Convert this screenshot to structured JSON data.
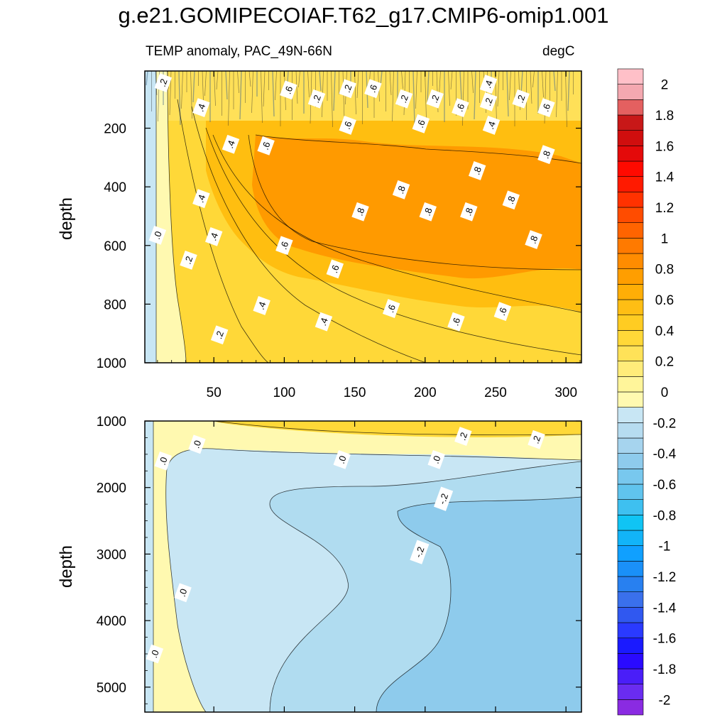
{
  "title": "g.e21.GOMIPECOIAF.T62_g17.CMIP6-omip1.001",
  "chart_data": {
    "type": "heatmap",
    "title": "g.e21.GOMIPECOIAF.T62_g17.CMIP6-omip1.001",
    "subtitle_left": "TEMP anomaly, PAC_49N-66N",
    "subtitle_right": "degC",
    "panels": [
      {
        "name": "upper",
        "ylabel": "depth",
        "xlim": [
          1,
          311
        ],
        "ylim": [
          1000,
          5
        ],
        "x_ticks": [
          50,
          100,
          150,
          200,
          250,
          300
        ],
        "x_tick_labels": [
          "50",
          "100",
          "150",
          "200",
          "250",
          "300"
        ],
        "y_ticks": [
          200,
          400,
          600,
          800,
          1000
        ],
        "y_tick_labels": [
          "200",
          "400",
          "600",
          "800",
          "1000"
        ],
        "contour_labels": [
          {
            "text": ".2",
            "x": 14,
            "y": 45
          },
          {
            "text": ".4",
            "x": 41,
            "y": 130
          },
          {
            "text": ".6",
            "x": 103,
            "y": 70
          },
          {
            "text": ".2",
            "x": 123,
            "y": 100
          },
          {
            "text": ".2",
            "x": 145,
            "y": 65
          },
          {
            "text": ".6",
            "x": 163,
            "y": 65
          },
          {
            "text": ".2",
            "x": 185,
            "y": 100
          },
          {
            "text": ".2",
            "x": 207,
            "y": 100
          },
          {
            "text": ".6",
            "x": 225,
            "y": 130
          },
          {
            "text": ".4",
            "x": 245,
            "y": 50
          },
          {
            "text": ".2",
            "x": 245,
            "y": 110
          },
          {
            "text": ".2",
            "x": 268,
            "y": 100
          },
          {
            "text": ".6",
            "x": 286,
            "y": 130
          },
          {
            "text": ".6",
            "x": 145,
            "y": 190
          },
          {
            "text": ".6",
            "x": 197,
            "y": 185
          },
          {
            "text": ".4",
            "x": 247,
            "y": 190
          },
          {
            "text": ".4",
            "x": 62,
            "y": 255
          },
          {
            "text": ".6",
            "x": 87,
            "y": 260
          },
          {
            "text": ".8",
            "x": 286,
            "y": 290
          },
          {
            "text": ".8",
            "x": 237,
            "y": 345
          },
          {
            "text": ".8",
            "x": 183,
            "y": 410
          },
          {
            "text": ".4",
            "x": 41,
            "y": 440
          },
          {
            "text": ".8",
            "x": 261,
            "y": 445
          },
          {
            "text": ".8",
            "x": 154,
            "y": 485
          },
          {
            "text": ".8",
            "x": 202,
            "y": 485
          },
          {
            "text": ".8",
            "x": 231,
            "y": 485
          },
          {
            "text": ".0",
            "x": 10,
            "y": 565
          },
          {
            "text": ".4",
            "x": 50,
            "y": 570
          },
          {
            "text": ".8",
            "x": 277,
            "y": 580
          },
          {
            "text": ".6",
            "x": 100,
            "y": 600
          },
          {
            "text": ".2",
            "x": 32,
            "y": 650
          },
          {
            "text": ".6",
            "x": 136,
            "y": 680
          },
          {
            "text": ".4",
            "x": 84,
            "y": 805
          },
          {
            "text": ".6",
            "x": 176,
            "y": 815
          },
          {
            "text": ".6",
            "x": 255,
            "y": 825
          },
          {
            "text": ".4",
            "x": 128,
            "y": 860
          },
          {
            "text": ".6",
            "x": 222,
            "y": 860
          },
          {
            "text": ".2",
            "x": 54,
            "y": 905
          }
        ]
      },
      {
        "name": "lower",
        "ylabel": "depth",
        "xlim": [
          1,
          311
        ],
        "ylim": [
          5375,
          1000
        ],
        "y_ticks": [
          1000,
          2000,
          3000,
          4000,
          5000
        ],
        "y_tick_labels": [
          "1000",
          "2000",
          "3000",
          "4000",
          "5000"
        ],
        "contour_labels": [
          {
            "text": ".0",
            "x": 38,
            "y": 1350
          },
          {
            "text": ".0",
            "x": 14,
            "y": 1600
          },
          {
            "text": ".0",
            "x": 141,
            "y": 1580
          },
          {
            "text": ".0",
            "x": 208,
            "y": 1580
          },
          {
            "text": ".2",
            "x": 227,
            "y": 1230
          },
          {
            "text": ".2",
            "x": 279,
            "y": 1280
          },
          {
            "text": "-.2",
            "x": 213,
            "y": 2170
          },
          {
            "text": "-.2",
            "x": 196,
            "y": 2970
          },
          {
            "text": ".0",
            "x": 28,
            "y": 3580
          },
          {
            "text": ".0",
            "x": 8,
            "y": 4500
          }
        ]
      }
    ],
    "colorbar": {
      "levels": [
        -2,
        -1.9,
        -1.8,
        -1.7,
        -1.6,
        -1.5,
        -1.4,
        -1.3,
        -1.2,
        -1.1,
        -1,
        -0.9,
        -0.8,
        -0.7,
        -0.6,
        -0.5,
        -0.4,
        -0.3,
        -0.2,
        -0.1,
        0,
        0.1,
        0.2,
        0.3,
        0.4,
        0.5,
        0.6,
        0.7,
        0.8,
        0.9,
        1,
        1.1,
        1.2,
        1.3,
        1.4,
        1.5,
        1.6,
        1.7,
        1.8,
        1.9,
        2
      ],
      "labels": [
        "-2",
        "-1.8",
        "-1.6",
        "-1.4",
        "-1.2",
        "-1",
        "-0.8",
        "-0.6",
        "-0.4",
        "-0.2",
        "0",
        "0.2",
        "0.4",
        "0.6",
        "0.8",
        "1",
        "1.2",
        "1.4",
        "1.6",
        "1.8",
        "2"
      ],
      "colors": [
        "#8a2be2",
        "#6a2cf0",
        "#4a1ef8",
        "#2a0aff",
        "#1a1aff",
        "#2a3aff",
        "#3058f0",
        "#3a70ec",
        "#2880f0",
        "#1a90f8",
        "#10a0ff",
        "#12b4f8",
        "#10c4f4",
        "#3ec0f0",
        "#60c4ee",
        "#78c8ee",
        "#8ecbec",
        "#a6d4ee",
        "#b6dcf0",
        "#c8e6f4",
        "#fff9b0",
        "#fff59a",
        "#ffec7a",
        "#ffe258",
        "#ffd838",
        "#ffcc22",
        "#ffbe14",
        "#ffae06",
        "#ff9e00",
        "#ff8c00",
        "#ff7a00",
        "#ff6400",
        "#ff4c00",
        "#ff3200",
        "#ff1a00",
        "#ff0a00",
        "#e40a0a",
        "#d00e0e",
        "#c81818",
        "#e46060",
        "#f4a8b0",
        "#ffc0c8"
      ]
    }
  },
  "colors": {
    "upper_shallow": "#ffe058",
    "upper_warm": "#ff9a00",
    "upper_mid": "#ffbe10",
    "upper_low": "#ffd838",
    "light_yellow": "#fff9b0",
    "edge_blue": "#c8e6f4",
    "lower_light_blue": "#c8e6f4",
    "lower_mid_blue": "#b0dcf0",
    "lower_deep_blue": "#8ecbec"
  }
}
